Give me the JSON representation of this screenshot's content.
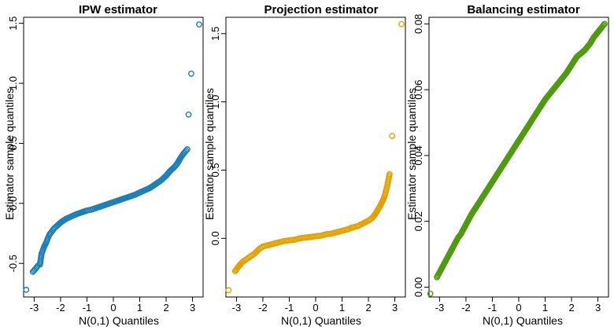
{
  "figure": {
    "background": "#ffffff"
  },
  "chart_data": [
    {
      "type": "scatter",
      "title": "IPW estimator",
      "xlabel": "N(0,1) Quantiles",
      "ylabel": "Estimator sample quantiles",
      "color": "#1c7fb6",
      "marker": "open-circle",
      "xlim": [
        -3.4,
        3.4
      ],
      "ylim": [
        -0.78,
        1.55
      ],
      "x_ticks": [
        -3,
        -2,
        -1,
        0,
        1,
        2,
        3
      ],
      "x_tick_labels": [
        "-3",
        "-2",
        "-1",
        "0",
        "1",
        "2",
        "3"
      ],
      "y_ticks": [
        -0.5,
        0.0,
        0.5,
        1.0,
        1.5
      ],
      "y_tick_labels": [
        "-0.5",
        "0.0",
        "0.5",
        "1.0",
        "1.5"
      ],
      "series": [
        {
          "x": [
            -3.3,
            -3.05,
            -2.93,
            -2.86,
            -2.78,
            -2.72,
            -2.62,
            -2.55,
            -2.48,
            -2.42,
            -2.35,
            -2.25,
            -2.15,
            -2.0,
            -1.8,
            -1.6,
            -1.4,
            -1.2,
            -1.0,
            -0.8,
            -0.6,
            -0.4,
            -0.2,
            0.0,
            0.2,
            0.4,
            0.6,
            0.8,
            1.0,
            1.2,
            1.4,
            1.6,
            1.8,
            2.0,
            2.15,
            2.3,
            2.42,
            2.55,
            2.68,
            2.8,
            2.95,
            3.25
          ],
          "y": [
            -0.72,
            -0.57,
            -0.54,
            -0.52,
            -0.51,
            -0.42,
            -0.36,
            -0.33,
            -0.29,
            -0.26,
            -0.24,
            -0.21,
            -0.19,
            -0.16,
            -0.13,
            -0.11,
            -0.09,
            -0.075,
            -0.06,
            -0.05,
            -0.035,
            -0.02,
            -0.005,
            0.01,
            0.025,
            0.04,
            0.055,
            0.07,
            0.09,
            0.11,
            0.13,
            0.16,
            0.19,
            0.23,
            0.27,
            0.3,
            0.33,
            0.38,
            0.42,
            0.45,
            1.08,
            1.49
          ]
        }
      ],
      "extra_points": [
        {
          "x": 2.85,
          "y": 0.74
        }
      ]
    },
    {
      "type": "scatter",
      "title": "Projection estimator",
      "xlabel": "N(0,1) Quantiles",
      "ylabel": "Estimator sample quantiles",
      "color": "#e5a100",
      "marker": "open-circle",
      "xlim": [
        -3.4,
        3.4
      ],
      "ylim": [
        -0.43,
        1.62
      ],
      "x_ticks": [
        -3,
        -2,
        -1,
        0,
        1,
        2,
        3
      ],
      "x_tick_labels": [
        "-3",
        "-2",
        "-1",
        "0",
        "1",
        "2",
        "3"
      ],
      "y_ticks": [
        0.0,
        0.5,
        1.0,
        1.5
      ],
      "y_tick_labels": [
        "0.0",
        "0.5",
        "1.0",
        "1.5"
      ],
      "series": [
        {
          "x": [
            -3.3,
            -3.05,
            -2.9,
            -2.75,
            -2.6,
            -2.45,
            -2.3,
            -2.15,
            -2.0,
            -1.8,
            -1.6,
            -1.4,
            -1.2,
            -1.0,
            -0.8,
            -0.6,
            -0.4,
            -0.2,
            0.0,
            0.2,
            0.4,
            0.6,
            0.8,
            1.0,
            1.2,
            1.4,
            1.6,
            1.8,
            2.0,
            2.15,
            2.3,
            2.45,
            2.6,
            2.72,
            2.8,
            2.9,
            3.25
          ],
          "y": [
            -0.38,
            -0.24,
            -0.2,
            -0.17,
            -0.15,
            -0.13,
            -0.11,
            -0.08,
            -0.06,
            -0.05,
            -0.04,
            -0.03,
            -0.02,
            -0.015,
            -0.01,
            0.0,
            0.005,
            0.01,
            0.015,
            0.02,
            0.03,
            0.035,
            0.045,
            0.055,
            0.065,
            0.08,
            0.09,
            0.11,
            0.13,
            0.15,
            0.19,
            0.24,
            0.3,
            0.39,
            0.47,
            0.75,
            1.57
          ]
        }
      ]
    },
    {
      "type": "scatter",
      "title": "Balancing estimator",
      "xlabel": "N(0,1) Quantiles",
      "ylabel": "Estimator sample quantiles",
      "color": "#4f9a0f",
      "marker": "open-circle",
      "xlim": [
        -3.4,
        3.4
      ],
      "ylim": [
        -0.003,
        0.082
      ],
      "x_ticks": [
        -3,
        -2,
        -1,
        0,
        1,
        2,
        3
      ],
      "x_tick_labels": [
        "-3",
        "-2",
        "-1",
        "0",
        "1",
        "2",
        "3"
      ],
      "y_ticks": [
        0.0,
        0.02,
        0.04,
        0.06,
        0.08
      ],
      "y_tick_labels": [
        "0.00",
        "0.02",
        "0.04",
        "0.06",
        "0.08"
      ],
      "series": [
        {
          "x": [
            -3.35,
            -3.1,
            -3.0,
            -2.9,
            -2.8,
            -2.7,
            -2.6,
            -2.5,
            -2.4,
            -2.3,
            -2.2,
            -2.0,
            -1.8,
            -1.6,
            -1.4,
            -1.2,
            -1.0,
            -0.8,
            -0.6,
            -0.4,
            -0.2,
            0.0,
            0.2,
            0.4,
            0.6,
            0.8,
            1.0,
            1.2,
            1.4,
            1.6,
            1.8,
            2.0,
            2.2,
            2.35,
            2.5,
            2.6,
            2.7,
            2.85,
            3.05,
            3.25
          ],
          "y": [
            -0.002,
            0.003,
            0.0045,
            0.006,
            0.0075,
            0.009,
            0.0105,
            0.012,
            0.0135,
            0.015,
            0.016,
            0.019,
            0.022,
            0.0245,
            0.027,
            0.0295,
            0.032,
            0.0345,
            0.037,
            0.0395,
            0.042,
            0.0445,
            0.047,
            0.0495,
            0.052,
            0.0545,
            0.057,
            0.059,
            0.061,
            0.063,
            0.065,
            0.0675,
            0.07,
            0.071,
            0.072,
            0.073,
            0.074,
            0.076,
            0.078,
            0.08
          ]
        }
      ]
    }
  ]
}
